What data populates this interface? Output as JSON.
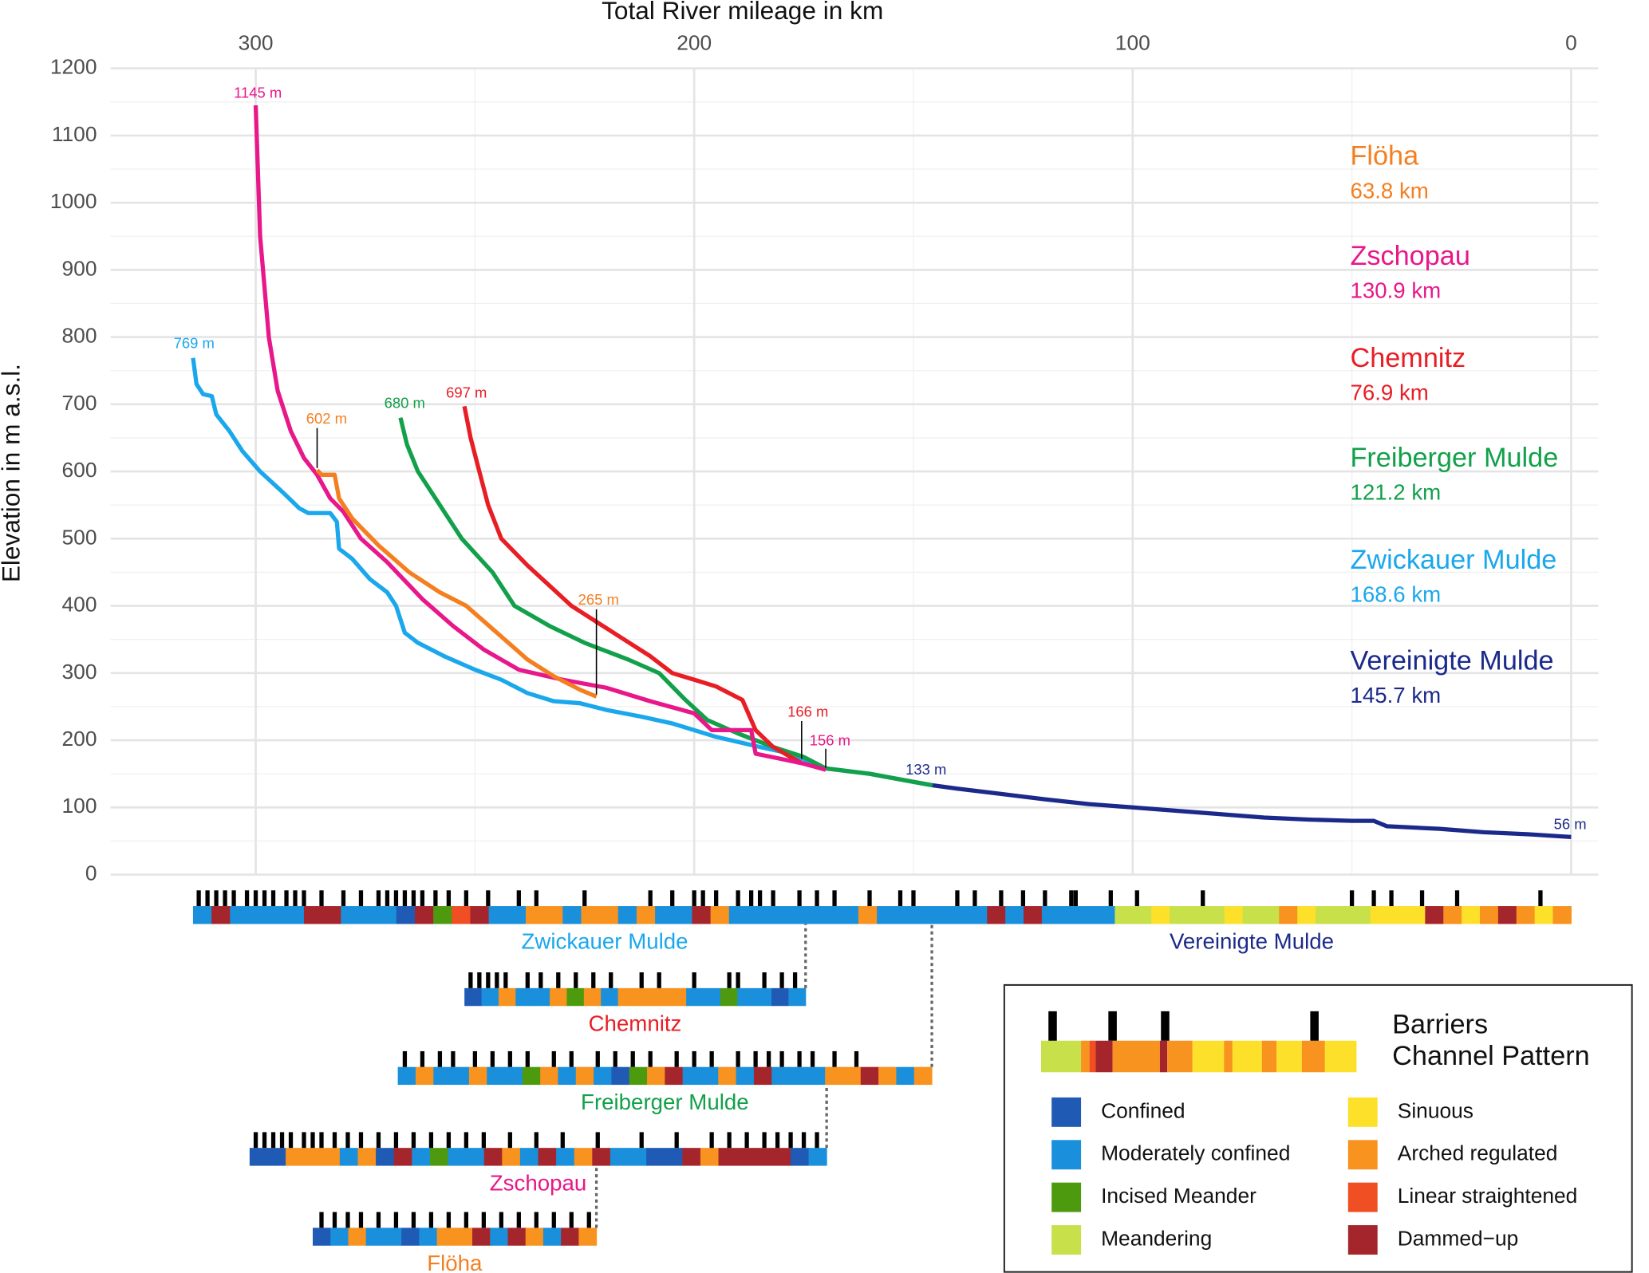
{
  "chart_data": {
    "type": "line",
    "title": "Total River mileage in km",
    "y_label": "Elevation in m a.s.l.",
    "xlim": [
      333.1,
      -6.2
    ],
    "xticks": [
      300,
      200,
      100,
      0
    ],
    "x_minor_ticks": [
      250,
      150,
      50
    ],
    "ylim": [
      0,
      1200
    ],
    "yticks": [
      0,
      100,
      200,
      300,
      400,
      500,
      600,
      700,
      800,
      900,
      1000,
      1100,
      1200
    ],
    "y_minor_ticks": [
      50,
      150,
      250,
      350,
      450,
      550,
      650,
      750,
      850,
      950,
      1050,
      1150
    ],
    "grid": true,
    "series": [
      {
        "name": "Vereinigte Mulde",
        "length_label": "145.7 km",
        "color": "#1b2a8a",
        "x": [
          145.7,
          140,
          130,
          120,
          110,
          100,
          90,
          80,
          70,
          60,
          50,
          45,
          42,
          30,
          20,
          10,
          5,
          0
        ],
        "values": [
          133,
          128,
          120,
          112,
          105,
          100,
          95,
          90,
          85,
          82,
          80,
          80,
          72,
          68,
          63,
          60,
          58,
          56
        ]
      },
      {
        "name": "Zwickauer Mulde",
        "length_label": "168.6 km",
        "color": "#1aa7ec",
        "x": [
          314.3,
          313.5,
          312,
          310,
          309,
          306,
          303,
          299,
          294,
          290,
          288,
          283,
          281.5,
          281,
          278,
          274,
          270,
          268,
          266,
          263,
          257,
          250,
          244,
          238,
          232,
          226,
          220,
          212,
          205,
          195,
          185,
          178,
          170,
          160,
          150,
          145.7
        ],
        "values": [
          769,
          730,
          715,
          712,
          685,
          660,
          630,
          600,
          570,
          545,
          538,
          538,
          525,
          485,
          470,
          440,
          420,
          400,
          360,
          345,
          325,
          305,
          290,
          270,
          258,
          255,
          245,
          235,
          225,
          205,
          190,
          180,
          158,
          150,
          138,
          133
        ]
      },
      {
        "name": "Freiberger Mulde",
        "length_label": "121.2 km",
        "color": "#12a04a",
        "x": [
          267,
          265.5,
          263,
          259,
          253,
          246,
          241,
          233,
          225,
          215,
          208,
          202,
          197,
          190,
          182,
          175,
          170,
          160,
          150,
          145.7
        ],
        "values": [
          680,
          640,
          600,
          560,
          500,
          450,
          400,
          370,
          345,
          320,
          300,
          260,
          230,
          210,
          190,
          175,
          158,
          150,
          138,
          133
        ]
      },
      {
        "name": "Chemnitz",
        "length_label": "76.9 km",
        "color": "#e81e25",
        "x": [
          252.4,
          251,
          249,
          247,
          244,
          238,
          233,
          228,
          222,
          216,
          210,
          205,
          200,
          195,
          189,
          186,
          182,
          178,
          175.5
        ],
        "values": [
          697,
          650,
          600,
          550,
          500,
          460,
          430,
          400,
          375,
          350,
          325,
          300,
          290,
          280,
          260,
          215,
          190,
          175,
          166
        ]
      },
      {
        "name": "Zschopau",
        "length_label": "130.9 km",
        "color": "#e8178a",
        "x": [
          300,
          299,
          297,
          295,
          292,
          289,
          286,
          283,
          280,
          276,
          270,
          262,
          255,
          248,
          240,
          230,
          220,
          210,
          200,
          196,
          187,
          186,
          180,
          175,
          170
        ],
        "values": [
          1145,
          950,
          800,
          720,
          660,
          620,
          595,
          560,
          540,
          500,
          465,
          410,
          370,
          335,
          305,
          290,
          278,
          258,
          240,
          215,
          215,
          180,
          172,
          165,
          156
        ]
      },
      {
        "name": "Flöha",
        "length_label": "63.8 km",
        "color": "#f47f20",
        "x": [
          286,
          285,
          282,
          281,
          278,
          272,
          265,
          258,
          252,
          245,
          238,
          232,
          226,
          222.3
        ],
        "values": [
          602,
          595,
          595,
          560,
          530,
          490,
          450,
          420,
          400,
          360,
          320,
          295,
          275,
          265
        ]
      }
    ],
    "annotations": [
      {
        "text": "1145 m",
        "x": 300,
        "y": 1145,
        "color": "#e8178a"
      },
      {
        "text": "769 m",
        "x": 314.3,
        "y": 769,
        "color": "#1aa7ec"
      },
      {
        "text": "680 m",
        "x": 267,
        "y": 680,
        "color": "#12a04a"
      },
      {
        "text": "697 m",
        "x": 252.4,
        "y": 697,
        "color": "#e81e25"
      },
      {
        "text": "602 m",
        "x": 286,
        "y": 602,
        "color": "#f47f20"
      },
      {
        "text": "265 m",
        "x": 222.3,
        "y": 265,
        "color": "#f47f20"
      },
      {
        "text": "166 m",
        "x": 175.5,
        "y": 166,
        "color": "#e81e25"
      },
      {
        "text": "156 m",
        "x": 170,
        "y": 156,
        "color": "#e8178a"
      },
      {
        "text": "133 m",
        "x": 145.7,
        "y": 133,
        "color": "#1b2a8a"
      },
      {
        "text": "56 m",
        "x": 0,
        "y": 56,
        "color": "#1b2a8a"
      }
    ],
    "channel_classes": [
      {
        "name": "Confined",
        "color": "#1f5bb5"
      },
      {
        "name": "Moderately confined",
        "color": "#1a8fdc"
      },
      {
        "name": "Incised Meander",
        "color": "#4e9a0e"
      },
      {
        "name": "Meandering",
        "color": "#c8e04a"
      },
      {
        "name": "Sinuous",
        "color": "#fde02a"
      },
      {
        "name": "Arched regulated",
        "color": "#f7931e"
      },
      {
        "name": "Linear straightened",
        "color": "#f04e23"
      },
      {
        "name": "Dammed−up",
        "color": "#a4262c"
      }
    ],
    "legend_titles": [
      "Barriers",
      "Channel Pattern"
    ],
    "channel_strips": [
      {
        "name": "Zwickauer Mulde",
        "color": "#1aa7ec",
        "start_km": 314.3,
        "end_km": 145.7,
        "pattern": [
          1,
          7,
          1,
          1,
          1,
          1,
          7,
          7,
          1,
          1,
          1,
          0,
          7,
          2,
          6,
          7,
          1,
          1,
          5,
          5,
          1,
          5,
          5,
          1,
          5,
          1,
          1,
          7,
          5,
          1,
          1,
          1,
          1,
          1,
          1,
          1,
          5,
          1,
          1,
          1
        ],
        "barriers": [
          313,
          311,
          309,
          307,
          305,
          302,
          300,
          298,
          296,
          293,
          291,
          289,
          285,
          280,
          276,
          272,
          270,
          268,
          266,
          264,
          262,
          259,
          256,
          252,
          247,
          240,
          236,
          225,
          210,
          205,
          200,
          198,
          195,
          190,
          187,
          185,
          182,
          176,
          172,
          168,
          160,
          153,
          150
        ]
      },
      {
        "name": "Vereinigte Mulde",
        "color": "#1b2a8a",
        "start_km": 145.7,
        "end_km": 0,
        "pattern": [
          1,
          1,
          1,
          7,
          1,
          7,
          1,
          1,
          1,
          1,
          3,
          3,
          4,
          3,
          3,
          3,
          4,
          3,
          3,
          5,
          4,
          3,
          3,
          3,
          4,
          4,
          4,
          7,
          5,
          4,
          5,
          7,
          5,
          4,
          5
        ],
        "barriers": [
          140,
          136,
          130,
          125,
          120,
          114,
          113,
          105,
          99,
          84,
          50,
          45,
          41,
          34,
          26,
          7
        ]
      },
      {
        "name": "Chemnitz",
        "color": "#e81e25",
        "start_km": 252.4,
        "end_km": 174.6,
        "pattern": [
          0,
          1,
          5,
          1,
          1,
          5,
          2,
          5,
          1,
          5,
          5,
          5,
          5,
          1,
          1,
          2,
          1,
          1,
          0,
          1
        ],
        "barriers": [
          251,
          249,
          247,
          245,
          243,
          238,
          235,
          231,
          227,
          223,
          219,
          212,
          208,
          200,
          192,
          190,
          184,
          180,
          177
        ]
      },
      {
        "name": "Freiberger Mulde",
        "color": "#12a04a",
        "start_km": 267.6,
        "end_km": 145.8,
        "pattern": [
          1,
          5,
          1,
          1,
          5,
          1,
          1,
          2,
          5,
          1,
          5,
          1,
          0,
          2,
          5,
          7,
          1,
          1,
          5,
          1,
          7,
          1,
          1,
          1,
          5,
          5,
          7,
          5,
          1,
          5
        ],
        "barriers": [
          266,
          262,
          258,
          255,
          250,
          246,
          242,
          238,
          232,
          228,
          222,
          218,
          214,
          210,
          204,
          200,
          196,
          190,
          186,
          183,
          180,
          176,
          173,
          168,
          163
        ]
      },
      {
        "name": "Zschopau",
        "color": "#e8178a",
        "start_km": 301.4,
        "end_km": 169.8,
        "pattern": [
          0,
          0,
          5,
          5,
          5,
          1,
          5,
          0,
          7,
          1,
          2,
          1,
          1,
          7,
          5,
          1,
          7,
          1,
          5,
          7,
          1,
          1,
          0,
          0,
          7,
          5,
          7,
          7,
          7,
          7,
          0,
          1
        ],
        "barriers": [
          300,
          298,
          296,
          294,
          292,
          289,
          287,
          285,
          282,
          279,
          276,
          272,
          268,
          264,
          260,
          256,
          252,
          248,
          242,
          236,
          230,
          222,
          212,
          204,
          196,
          192,
          188,
          184,
          181,
          178,
          175,
          172
        ]
      },
      {
        "name": "Flöha",
        "color": "#f47f20",
        "start_km": 287,
        "end_km": 222.3,
        "pattern": [
          0,
          1,
          5,
          1,
          1,
          0,
          1,
          5,
          5,
          7,
          1,
          7,
          5,
          1,
          7,
          5
        ],
        "barriers": [
          285,
          282,
          279,
          276,
          272,
          268,
          264,
          260,
          256,
          252,
          248,
          244,
          240,
          236,
          232,
          228,
          224
        ]
      }
    ]
  }
}
